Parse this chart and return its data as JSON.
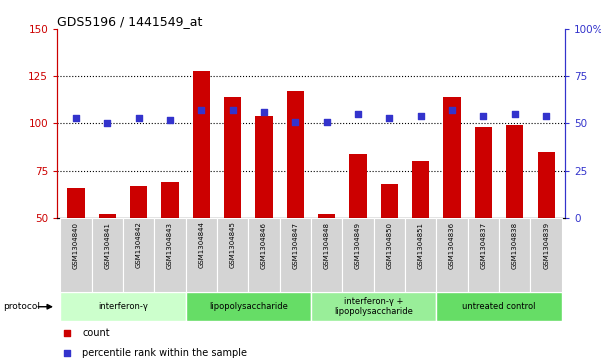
{
  "title": "GDS5196 / 1441549_at",
  "samples": [
    "GSM1304840",
    "GSM1304841",
    "GSM1304842",
    "GSM1304843",
    "GSM1304844",
    "GSM1304845",
    "GSM1304846",
    "GSM1304847",
    "GSM1304848",
    "GSM1304849",
    "GSM1304850",
    "GSM1304851",
    "GSM1304836",
    "GSM1304837",
    "GSM1304838",
    "GSM1304839"
  ],
  "counts": [
    66,
    52,
    67,
    69,
    128,
    114,
    104,
    117,
    52,
    84,
    68,
    80,
    114,
    98,
    99,
    85
  ],
  "percentiles": [
    53,
    50,
    53,
    52,
    57,
    57,
    56,
    51,
    51,
    55,
    53,
    54,
    57,
    54,
    55,
    54
  ],
  "ylim_left": [
    50,
    150
  ],
  "ylim_right": [
    0,
    100
  ],
  "yticks_left": [
    50,
    75,
    100,
    125,
    150
  ],
  "yticks_right": [
    0,
    25,
    50,
    75,
    100
  ],
  "bar_color": "#cc0000",
  "dot_color": "#3333cc",
  "groups": [
    {
      "label": "interferon-γ",
      "start": 0,
      "end": 4,
      "color": "#ccffcc"
    },
    {
      "label": "lipopolysaccharide",
      "start": 4,
      "end": 8,
      "color": "#66dd66"
    },
    {
      "label": "interferon-γ +\nlipopolysaccharide",
      "start": 8,
      "end": 12,
      "color": "#99ee99"
    },
    {
      "label": "untreated control",
      "start": 12,
      "end": 16,
      "color": "#66dd66"
    }
  ],
  "protocol_label": "protocol",
  "legend_count": "count",
  "legend_percentile": "percentile rank within the sample",
  "bar_bottom": 50,
  "grid_yticks": [
    75,
    100,
    125
  ],
  "left_color": "#cc0000",
  "right_color": "#3333cc"
}
